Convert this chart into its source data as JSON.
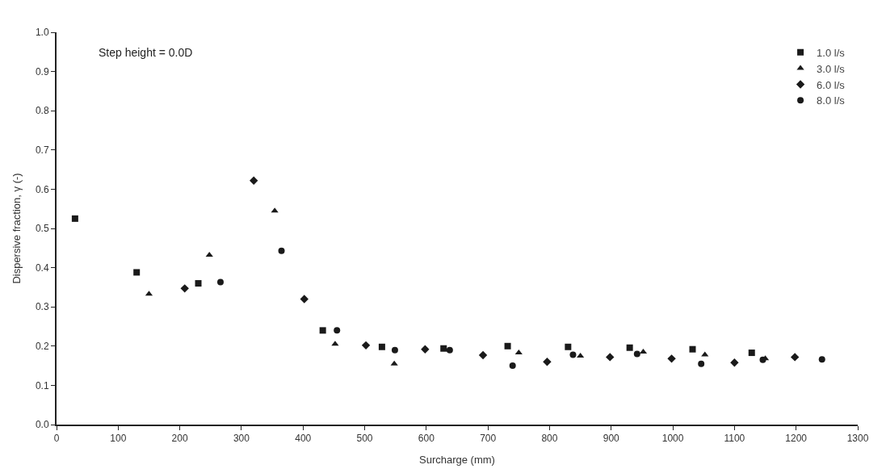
{
  "chart_data": {
    "type": "scatter",
    "xlabel": "Surcharge (mm)",
    "ylabel": "Dispersive fraction, γ (-)",
    "annotations": [
      "Step height = 0.0D"
    ],
    "xlim": [
      0,
      1300
    ],
    "xticks": [
      0,
      100,
      200,
      300,
      400,
      500,
      600,
      700,
      800,
      900,
      1000,
      1100,
      1200,
      1300
    ],
    "ylim": [
      0,
      1.0
    ],
    "yticks": [
      {
        "value": 0,
        "label": "0.0"
      },
      0.1,
      0.2,
      0.3,
      0.4,
      0.5,
      0.6,
      0.7,
      0.8,
      0.9,
      {
        "value": 1,
        "label": "1.0"
      }
    ],
    "legend": "top right",
    "series": [
      {
        "name": "1.0 l/s",
        "color": "#1a1a1a",
        "marker": "square",
        "x": [
          30,
          130,
          230,
          432,
          528,
          628,
          732,
          830,
          930,
          1032,
          1128
        ],
        "values": [
          0.525,
          0.388,
          0.36,
          0.24,
          0.198,
          0.194,
          0.2,
          0.198,
          0.196,
          0.192,
          0.183
        ]
      },
      {
        "name": "3.0 l/s",
        "color": "#1a1a1a",
        "marker": "triangle",
        "x": [
          150,
          248,
          354,
          452,
          548,
          750,
          850,
          952,
          1052,
          1150
        ],
        "values": [
          0.333,
          0.432,
          0.545,
          0.205,
          0.155,
          0.183,
          0.175,
          0.185,
          0.178,
          0.168
        ]
      },
      {
        "name": "6.0 l/s",
        "color": "#1a1a1a",
        "marker": "diamond",
        "x": [
          208,
          320,
          402,
          502,
          598,
          692,
          796,
          898,
          998,
          1100,
          1198
        ],
        "values": [
          0.347,
          0.622,
          0.32,
          0.202,
          0.192,
          0.177,
          0.16,
          0.172,
          0.168,
          0.158,
          0.172
        ]
      },
      {
        "name": "8.0 l/s",
        "color": "#1a1a1a",
        "marker": "circle",
        "x": [
          266,
          365,
          455,
          549,
          638,
          740,
          838,
          942,
          1046,
          1146,
          1242
        ],
        "values": [
          0.363,
          0.443,
          0.24,
          0.19,
          0.19,
          0.15,
          0.178,
          0.18,
          0.155,
          0.165,
          0.166
        ]
      }
    ]
  }
}
